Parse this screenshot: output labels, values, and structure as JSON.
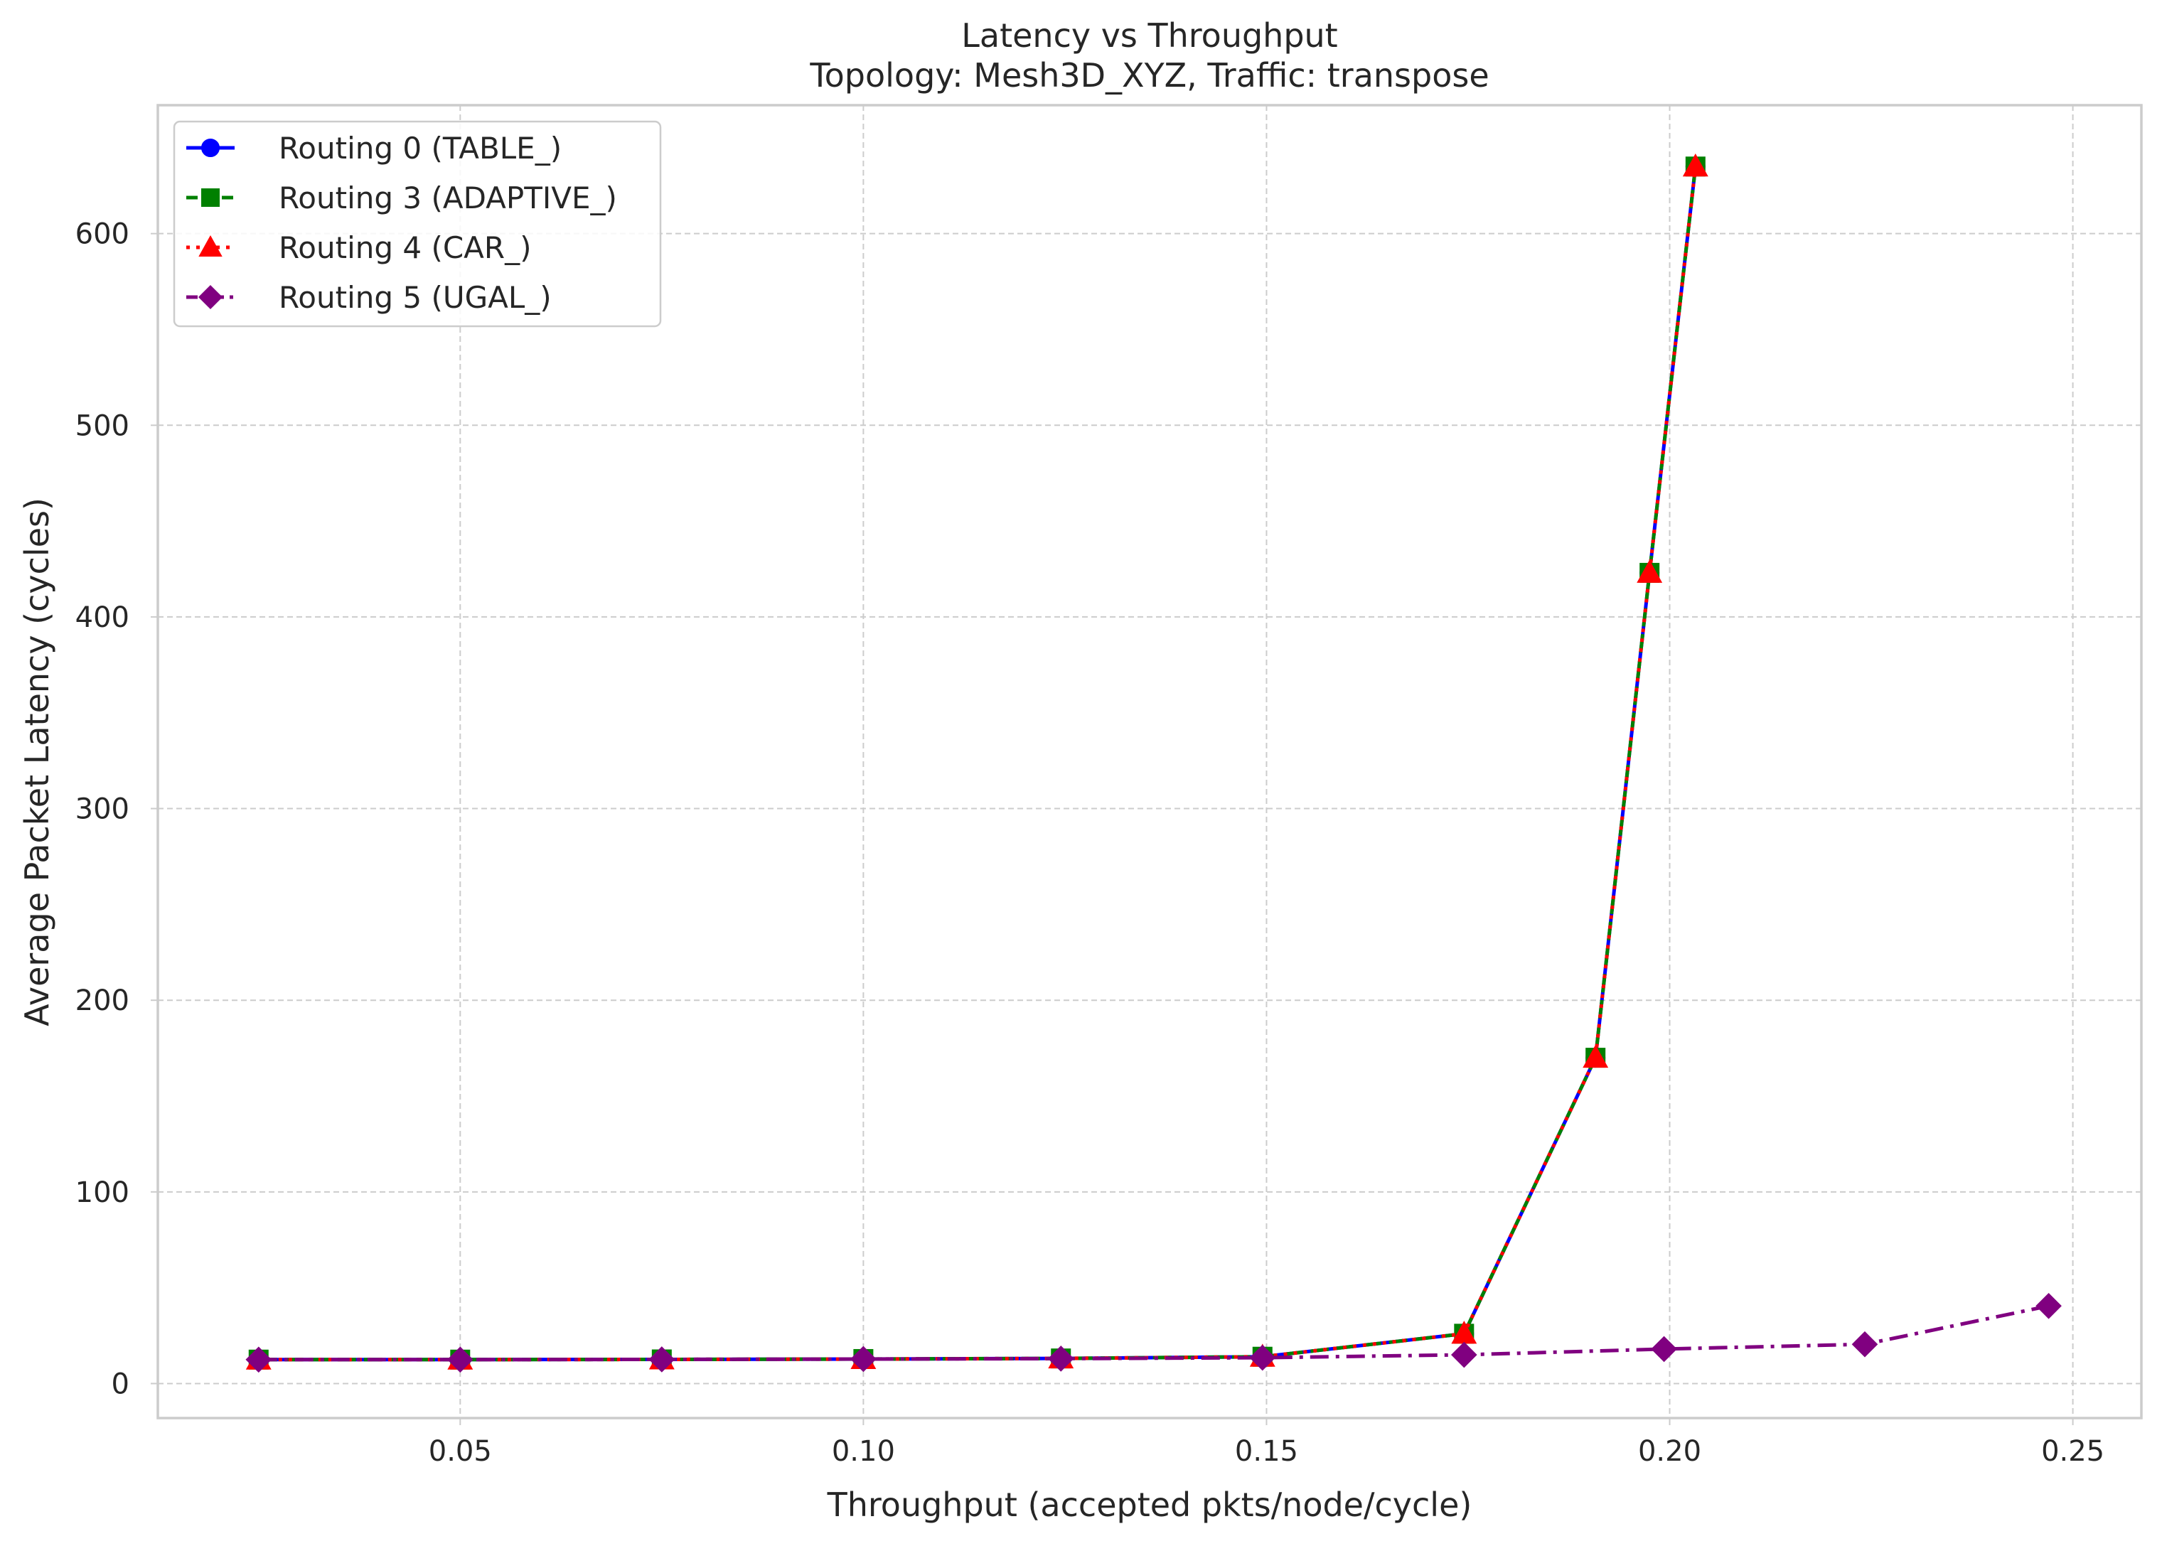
{
  "chart_data": {
    "type": "line",
    "title": "Latency vs Throughput",
    "subtitle": "Topology: Mesh3D_XYZ, Traffic: transpose",
    "xlabel": "Throughput (accepted pkts/node/cycle)",
    "ylabel": "Average Packet Latency (cycles)",
    "xlim": [
      0.0125,
      0.2585
    ],
    "ylim": [
      -18,
      667
    ],
    "xticks": [
      0.05,
      0.1,
      0.15,
      0.2,
      0.25
    ],
    "xtick_labels": [
      "0.05",
      "0.10",
      "0.15",
      "0.20",
      "0.25"
    ],
    "yticks": [
      0,
      100,
      200,
      300,
      400,
      500,
      600
    ],
    "ytick_labels": [
      "0",
      "100",
      "200",
      "300",
      "400",
      "500",
      "600"
    ],
    "grid": true,
    "legend_position": "top-left",
    "series": [
      {
        "name": "Routing 0 (TABLE_)",
        "color": "#0000ff",
        "line_style": "solid",
        "marker": "circle",
        "x": [
          0.025,
          0.05,
          0.075,
          0.1,
          0.1245,
          0.1495,
          0.1745,
          0.1908,
          0.1975,
          0.2032
        ],
        "y": [
          12.5,
          12.5,
          12.6,
          12.8,
          13.1,
          14.0,
          26.0,
          170.0,
          423.0,
          635.0
        ]
      },
      {
        "name": "Routing 3 (ADAPTIVE_)",
        "color": "#008000",
        "line_style": "dashed",
        "marker": "square",
        "x": [
          0.025,
          0.05,
          0.075,
          0.1,
          0.1245,
          0.1495,
          0.1745,
          0.1908,
          0.1975,
          0.2032
        ],
        "y": [
          12.5,
          12.5,
          12.6,
          12.8,
          13.1,
          14.0,
          26.0,
          170.0,
          423.0,
          635.0
        ]
      },
      {
        "name": "Routing 4 (CAR_)",
        "color": "#ff0000",
        "line_style": "dotted",
        "marker": "triangle",
        "x": [
          0.025,
          0.05,
          0.075,
          0.1,
          0.1245,
          0.1495,
          0.1745,
          0.1908,
          0.1975,
          0.2032
        ],
        "y": [
          12.5,
          12.5,
          12.6,
          12.8,
          13.1,
          14.0,
          26.0,
          170.0,
          423.0,
          635.0
        ]
      },
      {
        "name": "Routing 5 (UGAL_)",
        "color": "#800080",
        "line_style": "dashdot",
        "marker": "diamond",
        "x": [
          0.025,
          0.05,
          0.075,
          0.1,
          0.1245,
          0.1495,
          0.1745,
          0.1993,
          0.2242,
          0.247
        ],
        "y": [
          12.5,
          12.5,
          12.6,
          12.8,
          13.0,
          13.5,
          15.0,
          18.0,
          20.5,
          40.5
        ]
      }
    ]
  }
}
